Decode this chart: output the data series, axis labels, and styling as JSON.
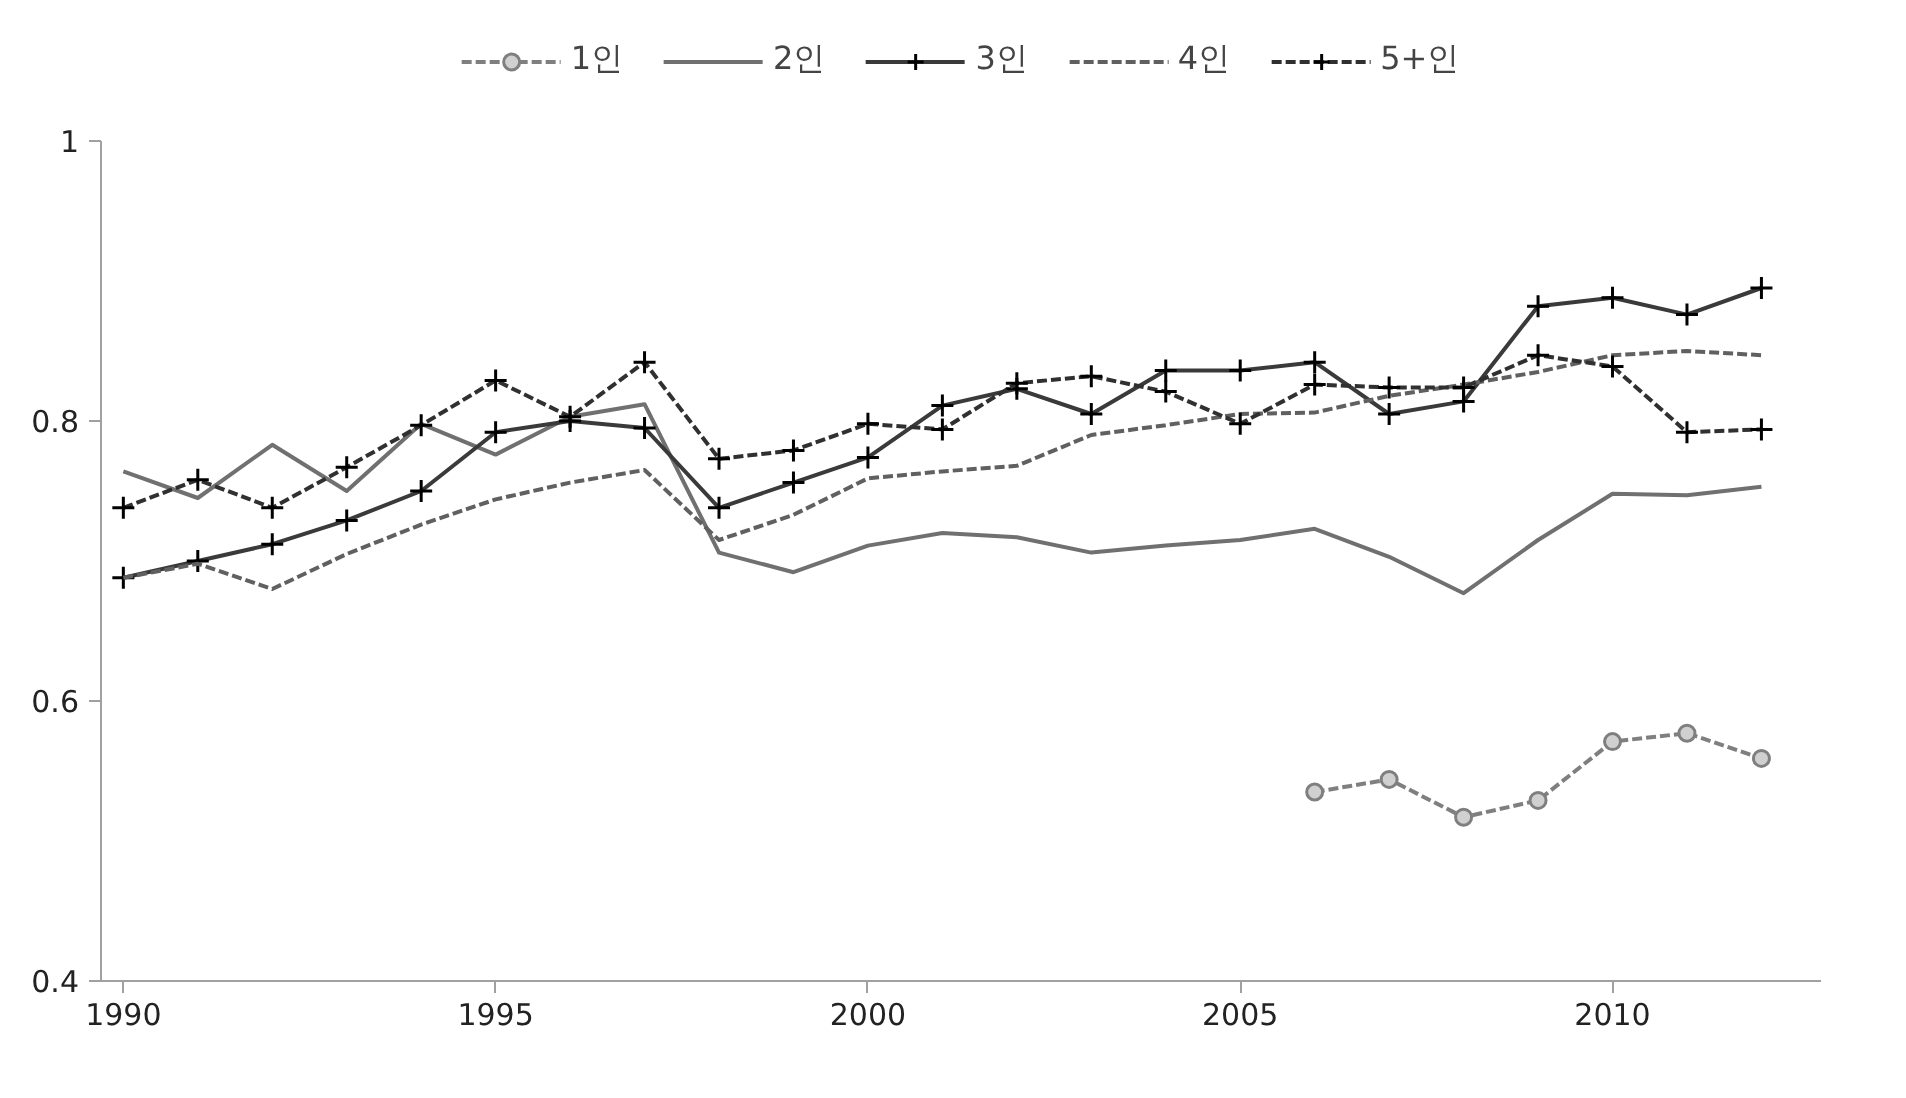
{
  "chart_data": {
    "type": "line",
    "x": [
      1990,
      1991,
      1992,
      1993,
      1994,
      1995,
      1996,
      1997,
      1998,
      1999,
      2000,
      2001,
      2002,
      2003,
      2004,
      2005,
      2006,
      2007,
      2008,
      2009,
      2010,
      2011,
      2012
    ],
    "series": [
      {
        "name": "1인",
        "color": "#7f7f7f",
        "line_style": "dashed",
        "marker": "circle",
        "values": [
          null,
          null,
          null,
          null,
          null,
          null,
          null,
          null,
          null,
          null,
          null,
          null,
          null,
          null,
          null,
          null,
          0.535,
          0.544,
          0.517,
          0.529,
          0.571,
          0.577,
          0.559
        ]
      },
      {
        "name": "2인",
        "color": "#707070",
        "line_style": "solid",
        "marker": "none",
        "values": [
          0.764,
          0.745,
          0.783,
          0.75,
          0.798,
          0.776,
          0.803,
          0.812,
          0.706,
          0.692,
          0.711,
          0.72,
          0.717,
          0.706,
          0.711,
          0.715,
          0.723,
          0.703,
          0.677,
          0.715,
          0.748,
          0.747,
          0.753
        ]
      },
      {
        "name": "3인",
        "color": "#3a3a3a",
        "line_style": "solid",
        "marker": "cross",
        "values": [
          0.688,
          0.7,
          0.712,
          0.729,
          0.75,
          0.792,
          0.8,
          0.795,
          0.738,
          0.756,
          0.774,
          0.811,
          0.823,
          0.805,
          0.836,
          0.836,
          0.842,
          0.805,
          0.814,
          0.882,
          0.888,
          0.876,
          0.895
        ]
      },
      {
        "name": "4인",
        "color": "#606060",
        "line_style": "dashed",
        "marker": "none",
        "values": [
          0.688,
          0.698,
          0.68,
          0.705,
          0.726,
          0.744,
          0.756,
          0.765,
          0.715,
          0.733,
          0.759,
          0.764,
          0.768,
          0.79,
          0.797,
          0.805,
          0.806,
          0.818,
          0.826,
          0.835,
          0.847,
          0.85,
          0.847
        ]
      },
      {
        "name": "5+인",
        "color": "#303030",
        "line_style": "dashed",
        "marker": "cross",
        "values": [
          0.738,
          0.758,
          0.738,
          0.767,
          0.797,
          0.829,
          0.803,
          0.842,
          0.773,
          0.779,
          0.798,
          0.794,
          0.827,
          0.832,
          0.821,
          0.798,
          0.826,
          0.824,
          0.824,
          0.847,
          0.839,
          0.792,
          0.794
        ]
      }
    ],
    "xlim": [
      1989.7,
      2012.8
    ],
    "xticks": [
      1990,
      1995,
      2000,
      2005,
      2010
    ],
    "ylim": [
      0.4,
      1
    ],
    "yticks": [
      0.4,
      0.6,
      0.8,
      1
    ],
    "grid": false,
    "legend": "top"
  }
}
